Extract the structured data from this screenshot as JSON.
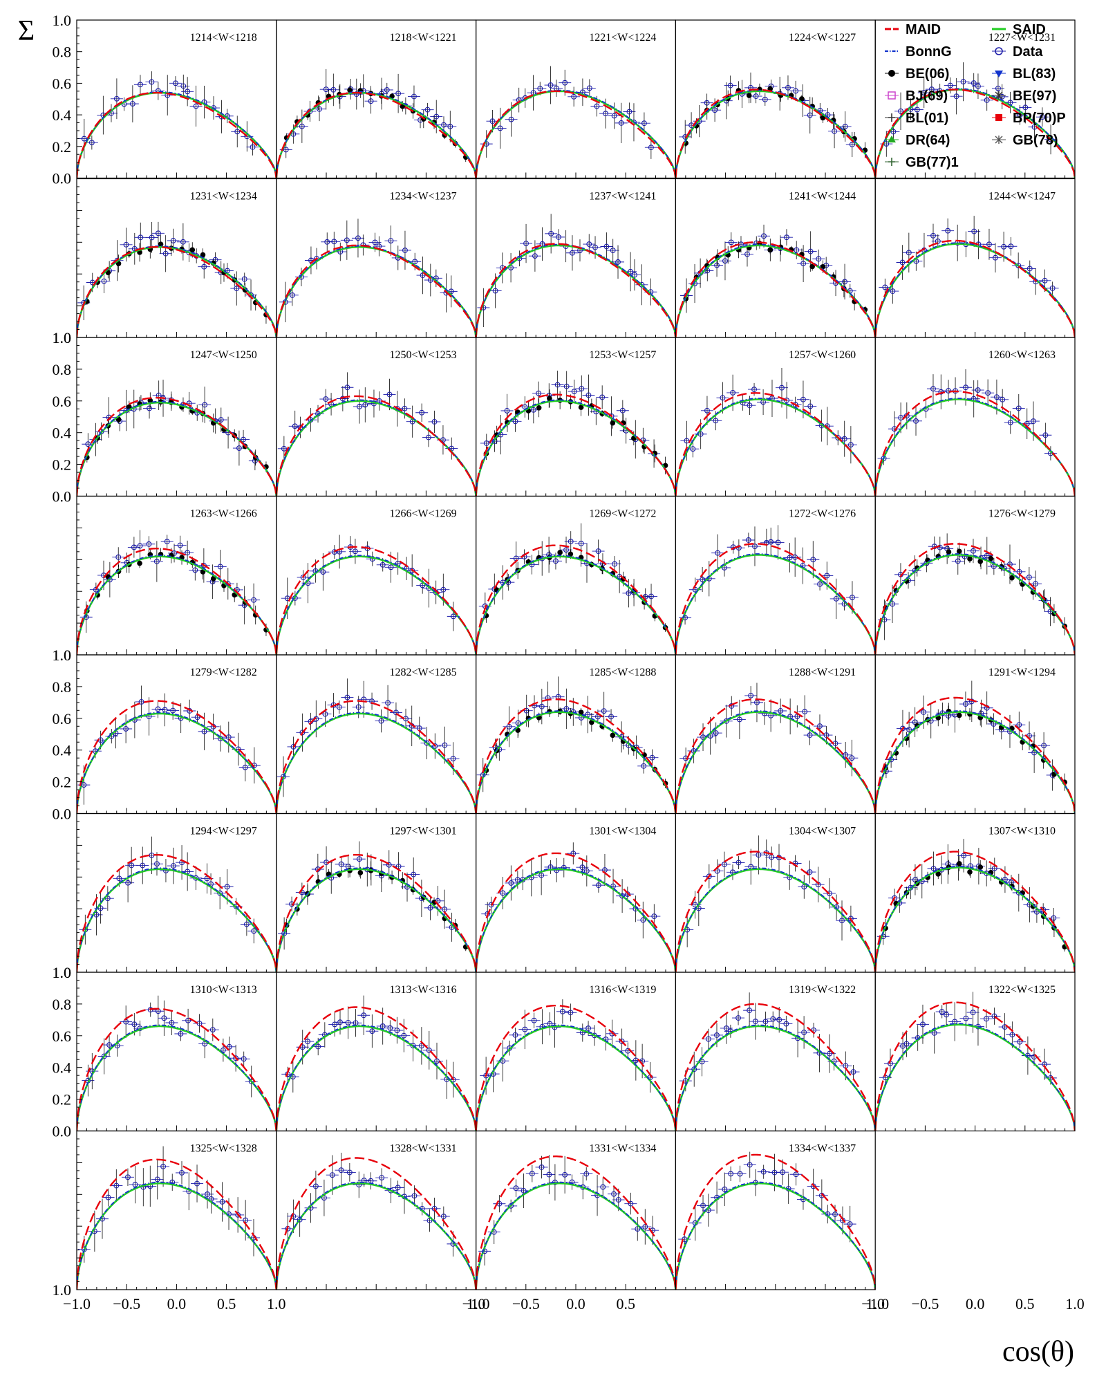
{
  "chart_data": {
    "type": "scatter",
    "title": "",
    "ylabel": "Σ",
    "xlabel": "cos(θ)",
    "xlim": [
      -1.0,
      1.0
    ],
    "ylim": [
      0.0,
      1.0
    ],
    "grid": false,
    "legend_position": "top-right",
    "y_tick_labels": [
      "0.0",
      "0.2",
      "0.4",
      "0.6",
      "0.8",
      "1.0"
    ],
    "y_tick_labels_mid": [
      "1.0"
    ],
    "x_tick_labels": [
      "−1.0",
      "−0.5",
      "0.0",
      "0.5",
      "1.0"
    ],
    "legend": [
      {
        "name": "MAID",
        "color": "#e8000b",
        "style": "dashed"
      },
      {
        "name": "SAID",
        "color": "#22cc22",
        "style": "solid"
      },
      {
        "name": "BonnG",
        "color": "#1133cc",
        "style": "dashdot"
      },
      {
        "name": "Data",
        "color": "#1a1aa8",
        "style": "open-circle"
      },
      {
        "name": "BE(06)",
        "color": "#000000",
        "style": "filled-circle"
      },
      {
        "name": "BL(83)",
        "color": "#1133cc",
        "style": "triangle-down"
      },
      {
        "name": "BJ(69)",
        "color": "#cc44cc",
        "style": "open-square"
      },
      {
        "name": "BE(97)",
        "color": "#333333",
        "style": "star"
      },
      {
        "name": "BL(01)",
        "color": "#333333",
        "style": "cross"
      },
      {
        "name": "BP(70)P",
        "color": "#e8000b",
        "style": "filled-square"
      },
      {
        "name": "DR(64)",
        "color": "#22aa22",
        "style": "triangle-up"
      },
      {
        "name": "GB(78)",
        "color": "#555555",
        "style": "star"
      },
      {
        "name": "GB(77)1",
        "color": "#336633",
        "style": "cross"
      }
    ],
    "panels": [
      {
        "label": "1214<W<1218",
        "maid_peak": 0.54,
        "said_peak": 0.54,
        "data_peak": 0.55,
        "has_be06": false
      },
      {
        "label": "1218<W<1221",
        "maid_peak": 0.54,
        "said_peak": 0.54,
        "data_peak": 0.56,
        "has_be06": true
      },
      {
        "label": "1221<W<1224",
        "maid_peak": 0.55,
        "said_peak": 0.55,
        "data_peak": 0.55,
        "has_be06": false
      },
      {
        "label": "1224<W<1227",
        "maid_peak": 0.56,
        "said_peak": 0.55,
        "data_peak": 0.56,
        "has_be06": true
      },
      {
        "label": "1227<W<1231",
        "maid_peak": 0.56,
        "said_peak": 0.56,
        "data_peak": 0.58,
        "has_be06": false
      },
      {
        "label": "1231<W<1234",
        "maid_peak": 0.57,
        "said_peak": 0.57,
        "data_peak": 0.59,
        "has_be06": true
      },
      {
        "label": "1234<W<1237",
        "maid_peak": 0.58,
        "said_peak": 0.57,
        "data_peak": 0.59,
        "has_be06": false
      },
      {
        "label": "1237<W<1241",
        "maid_peak": 0.59,
        "said_peak": 0.58,
        "data_peak": 0.6,
        "has_be06": false
      },
      {
        "label": "1241<W<1244",
        "maid_peak": 0.6,
        "said_peak": 0.58,
        "data_peak": 0.6,
        "has_be06": true
      },
      {
        "label": "1244<W<1247",
        "maid_peak": 0.61,
        "said_peak": 0.59,
        "data_peak": 0.63,
        "has_be06": false
      },
      {
        "label": "1247<W<1250",
        "maid_peak": 0.62,
        "said_peak": 0.59,
        "data_peak": 0.62,
        "has_be06": true
      },
      {
        "label": "1250<W<1253",
        "maid_peak": 0.63,
        "said_peak": 0.6,
        "data_peak": 0.63,
        "has_be06": false
      },
      {
        "label": "1253<W<1257",
        "maid_peak": 0.64,
        "said_peak": 0.6,
        "data_peak": 0.64,
        "has_be06": true
      },
      {
        "label": "1257<W<1260",
        "maid_peak": 0.65,
        "said_peak": 0.61,
        "data_peak": 0.64,
        "has_be06": false
      },
      {
        "label": "1260<W<1263",
        "maid_peak": 0.66,
        "said_peak": 0.61,
        "data_peak": 0.64,
        "has_be06": false
      },
      {
        "label": "1263<W<1266",
        "maid_peak": 0.67,
        "said_peak": 0.62,
        "data_peak": 0.65,
        "has_be06": true
      },
      {
        "label": "1266<W<1269",
        "maid_peak": 0.68,
        "said_peak": 0.62,
        "data_peak": 0.66,
        "has_be06": false
      },
      {
        "label": "1269<W<1272",
        "maid_peak": 0.69,
        "said_peak": 0.62,
        "data_peak": 0.66,
        "has_be06": true
      },
      {
        "label": "1272<W<1276",
        "maid_peak": 0.7,
        "said_peak": 0.63,
        "data_peak": 0.67,
        "has_be06": false
      },
      {
        "label": "1276<W<1279",
        "maid_peak": 0.7,
        "said_peak": 0.63,
        "data_peak": 0.66,
        "has_be06": true
      },
      {
        "label": "1279<W<1282",
        "maid_peak": 0.71,
        "said_peak": 0.63,
        "data_peak": 0.66,
        "has_be06": false
      },
      {
        "label": "1282<W<1285",
        "maid_peak": 0.71,
        "said_peak": 0.63,
        "data_peak": 0.67,
        "has_be06": false
      },
      {
        "label": "1285<W<1288",
        "maid_peak": 0.72,
        "said_peak": 0.64,
        "data_peak": 0.67,
        "has_be06": true
      },
      {
        "label": "1288<W<1291",
        "maid_peak": 0.72,
        "said_peak": 0.64,
        "data_peak": 0.68,
        "has_be06": false
      },
      {
        "label": "1291<W<1294",
        "maid_peak": 0.73,
        "said_peak": 0.64,
        "data_peak": 0.68,
        "has_be06": true
      },
      {
        "label": "1294<W<1297",
        "maid_peak": 0.74,
        "said_peak": 0.65,
        "data_peak": 0.69,
        "has_be06": false
      },
      {
        "label": "1297<W<1301",
        "maid_peak": 0.74,
        "said_peak": 0.65,
        "data_peak": 0.69,
        "has_be06": true
      },
      {
        "label": "1301<W<1304",
        "maid_peak": 0.75,
        "said_peak": 0.65,
        "data_peak": 0.69,
        "has_be06": false
      },
      {
        "label": "1304<W<1307",
        "maid_peak": 0.76,
        "said_peak": 0.65,
        "data_peak": 0.7,
        "has_be06": false
      },
      {
        "label": "1307<W<1310",
        "maid_peak": 0.76,
        "said_peak": 0.66,
        "data_peak": 0.69,
        "has_be06": true
      },
      {
        "label": "1310<W<1313",
        "maid_peak": 0.77,
        "said_peak": 0.66,
        "data_peak": 0.7,
        "has_be06": false
      },
      {
        "label": "1313<W<1316",
        "maid_peak": 0.78,
        "said_peak": 0.66,
        "data_peak": 0.7,
        "has_be06": false
      },
      {
        "label": "1316<W<1319",
        "maid_peak": 0.79,
        "said_peak": 0.66,
        "data_peak": 0.7,
        "has_be06": false
      },
      {
        "label": "1319<W<1322",
        "maid_peak": 0.8,
        "said_peak": 0.66,
        "data_peak": 0.71,
        "has_be06": false
      },
      {
        "label": "1322<W<1325",
        "maid_peak": 0.81,
        "said_peak": 0.67,
        "data_peak": 0.72,
        "has_be06": false
      },
      {
        "label": "1325<W<1328",
        "maid_peak": 0.82,
        "said_peak": 0.67,
        "data_peak": 0.72,
        "has_be06": false
      },
      {
        "label": "1328<W<1331",
        "maid_peak": 0.83,
        "said_peak": 0.67,
        "data_peak": 0.72,
        "has_be06": false
      },
      {
        "label": "1331<W<1334",
        "maid_peak": 0.84,
        "said_peak": 0.67,
        "data_peak": 0.73,
        "has_be06": false
      },
      {
        "label": "1334<W<1337",
        "maid_peak": 0.85,
        "said_peak": 0.67,
        "data_peak": 0.73,
        "has_be06": false
      }
    ]
  }
}
